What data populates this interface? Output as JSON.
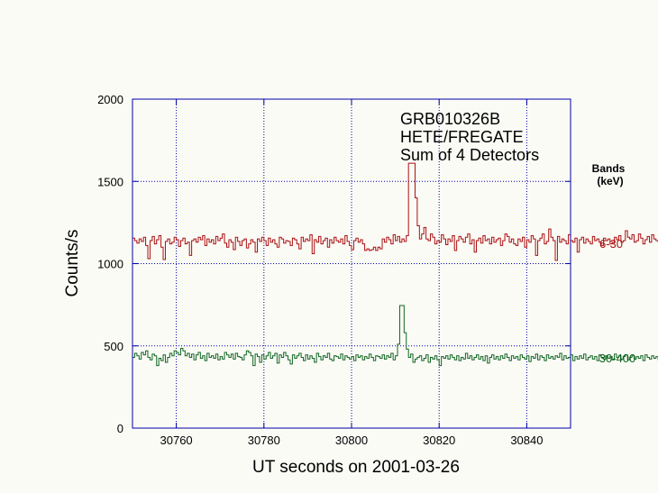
{
  "chart_data": {
    "type": "line",
    "step": true,
    "annotation": [
      "GRB010326B",
      "HETE/FREGATE",
      "Sum of 4 Detectors"
    ],
    "xlabel": "UT seconds on 2001-03-26",
    "ylabel": "Counts/s",
    "xlim": [
      30750,
      30850
    ],
    "ylim": [
      0,
      2000
    ],
    "xticks": [
      30760,
      30780,
      30800,
      30820,
      30840
    ],
    "yticks": [
      0,
      500,
      1000,
      1500,
      2000
    ],
    "grid": true,
    "legend_title": [
      "Bands",
      "(keV)"
    ],
    "series": [
      {
        "name": "6-30",
        "color": "#aa1111",
        "x_start": 30750,
        "bin_width": 0.5,
        "values": [
          1155,
          1140,
          1125,
          1150,
          1135,
          1160,
          1110,
          1030,
          1140,
          1165,
          1120,
          1145,
          1170,
          1100,
          1025,
          1135,
          1150,
          1120,
          1130,
          1160,
          1145,
          1105,
          1140,
          1155,
          1120,
          1130,
          1050,
          1140,
          1150,
          1130,
          1160,
          1145,
          1170,
          1110,
          1150,
          1130,
          1145,
          1120,
          1165,
          1140,
          1155,
          1180,
          1125,
          1100,
          1145,
          1130,
          1085,
          1160,
          1135,
          1110,
          1140,
          1150,
          1095,
          1120,
          1145,
          1130,
          1070,
          1150,
          1135,
          1160,
          1140,
          1110,
          1155,
          1130,
          1145,
          1120,
          1100,
          1160,
          1150,
          1125,
          1140,
          1135,
          1110,
          1155,
          1145,
          1120,
          1090,
          1160,
          1135,
          1150,
          1140,
          1175,
          1060,
          1145,
          1130,
          1165,
          1120,
          1140,
          1155,
          1100,
          1145,
          1125,
          1160,
          1140,
          1130,
          1150,
          1120,
          1170,
          1135,
          1110,
          1085,
          1140,
          1155,
          1130,
          1145,
          1120,
          1080,
          1090,
          1080,
          1085,
          1100,
          1080,
          1100,
          1090,
          1150,
          1130,
          1160,
          1145,
          1120,
          1175,
          1140,
          1165,
          1130,
          1150,
          1135,
          1170,
          1610,
          1610,
          1610,
          1400,
          1230,
          1150,
          1180,
          1220,
          1150,
          1140,
          1180,
          1160,
          1120,
          1140,
          1130,
          1175,
          1150,
          1115,
          1150,
          1135,
          1170,
          1080,
          1140,
          1165,
          1150,
          1130,
          1160,
          1180,
          1120,
          1145,
          1070,
          1140,
          1155,
          1125,
          1170,
          1140,
          1150,
          1120,
          1160,
          1130,
          1145,
          1155,
          1110,
          1140,
          1180,
          1165,
          1130,
          1150,
          1120,
          1110,
          1150,
          1135,
          1160,
          1100,
          1145,
          1130,
          1170,
          1150,
          1050,
          1140,
          1155,
          1180,
          1120,
          1135,
          1210,
          1160,
          1140,
          1020,
          1165,
          1130,
          1150,
          1140,
          1120,
          1175,
          1140,
          1130,
          1155,
          1070,
          1145,
          1160,
          1125,
          1150,
          1135,
          1120,
          1165,
          1140,
          1150,
          1130,
          1110,
          1155,
          1140,
          1150,
          1120,
          1130,
          1160,
          1145,
          1170,
          1130,
          1140,
          1200,
          1160,
          1150,
          1175,
          1130,
          1140,
          1180,
          1155,
          1120,
          1145,
          1165,
          1130,
          1175,
          1150,
          1140,
          1130,
          1165,
          1145,
          1155,
          1120,
          1150,
          1180,
          1140,
          1110,
          1160,
          1140,
          1200,
          1180,
          1160,
          1225,
          1265,
          1150,
          1100,
          1175,
          1150,
          1140,
          1195,
          1150,
          1135,
          1160,
          1140,
          1120,
          1155,
          1130,
          1190,
          1150,
          1130,
          1210,
          1130,
          1150
        ]
      },
      {
        "name": "30-400",
        "color": "#116622",
        "x_start": 30750,
        "bin_width": 0.5,
        "values": [
          430,
          455,
          440,
          420,
          460,
          445,
          470,
          430,
          415,
          450,
          440,
          380,
          425,
          410,
          445,
          400,
          430,
          455,
          440,
          470,
          460,
          445,
          485,
          470,
          440,
          455,
          430,
          450,
          415,
          445,
          460,
          425,
          440,
          410,
          455,
          430,
          440,
          425,
          450,
          415,
          435,
          420,
          460,
          445,
          430,
          450,
          420,
          455,
          435,
          430,
          415,
          445,
          470,
          460,
          440,
          380,
          450,
          435,
          400,
          445,
          420,
          440,
          460,
          425,
          440,
          455,
          395,
          445,
          430,
          460,
          440,
          415,
          390,
          445,
          425,
          440,
          455,
          430,
          410,
          445,
          420,
          440,
          425,
          400,
          455,
          435,
          415,
          440,
          430,
          455,
          420,
          410,
          440,
          435,
          425,
          450,
          415,
          440,
          430,
          420,
          435,
          410,
          445,
          430,
          440,
          415,
          435,
          425,
          450,
          430,
          410,
          440,
          435,
          425,
          445,
          420,
          440,
          430,
          455,
          415,
          440,
          510,
          745,
          745,
          580,
          480,
          430,
          450,
          400,
          420,
          430,
          440,
          410,
          425,
          445,
          400,
          430,
          420,
          440,
          415,
          380,
          435,
          425,
          440,
          420,
          445,
          430,
          415,
          440,
          410,
          430,
          420,
          455,
          425,
          440,
          415,
          430,
          445,
          420,
          435,
          410,
          440,
          395,
          430,
          445,
          420,
          435,
          415,
          440,
          425,
          450,
          430,
          410,
          440,
          425,
          435,
          415,
          445,
          430,
          420,
          440,
          405,
          435,
          425,
          450,
          415,
          440,
          430,
          410,
          445,
          425,
          435,
          420,
          440,
          430,
          455,
          415,
          440,
          425,
          430,
          445,
          410,
          435,
          420,
          440,
          425,
          450,
          415,
          430,
          440,
          420,
          435,
          410,
          445,
          430,
          420,
          440,
          425,
          435,
          415,
          450,
          430,
          440,
          420,
          435,
          445,
          415,
          430,
          440,
          420,
          435,
          425,
          440,
          410,
          445,
          430,
          420,
          440,
          425,
          435,
          415,
          440,
          430,
          450,
          420,
          435,
          440,
          425,
          410,
          445,
          430,
          420,
          440,
          425,
          435,
          450,
          430,
          415,
          440,
          425,
          445,
          430,
          420,
          480
        ]
      }
    ]
  }
}
